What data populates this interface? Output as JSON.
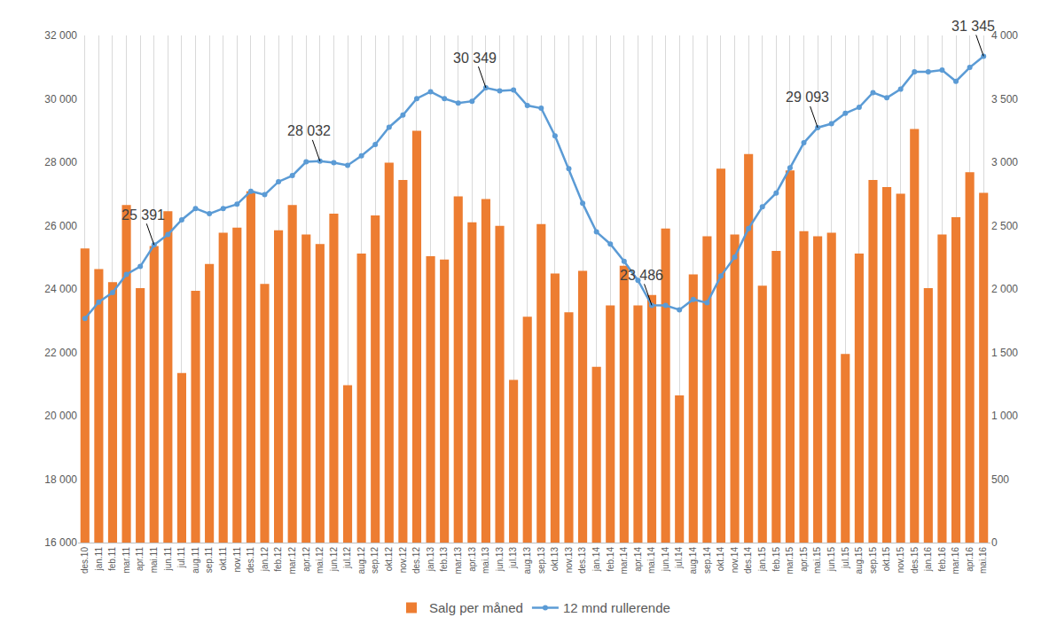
{
  "chart_data": {
    "type": "bar",
    "categories": [
      "des.10",
      "jan.11",
      "feb.11",
      "mar.11",
      "apr.11",
      "mai.11",
      "jun.11",
      "jul.11",
      "aug.11",
      "sep.11",
      "okt.11",
      "nov.11",
      "des.11",
      "jan.12",
      "feb.12",
      "mar.12",
      "apr.12",
      "mai.12",
      "jun.12",
      "jul.12",
      "aug.12",
      "sep.12",
      "okt.12",
      "nov.12",
      "des.12",
      "jan.13",
      "feb.13",
      "mar.13",
      "apr.13",
      "mai.13",
      "jun.13",
      "jul.13",
      "aug.13",
      "sep.13",
      "okt.13",
      "nov.13",
      "des.13",
      "jan.14",
      "feb.14",
      "mar.14",
      "apr.14",
      "mai.14",
      "jun.14",
      "jul.14",
      "aug.14",
      "sep.14",
      "okt.14",
      "nov.14",
      "des.14",
      "jan.15",
      "feb.15",
      "mar.15",
      "apr.15",
      "mai.15",
      "jun.15",
      "jul.15",
      "aug.15",
      "sep.15",
      "okt.15",
      "nov.15",
      "des.15",
      "jan.16",
      "feb.16",
      "mar.16",
      "apr.16",
      "mai.16"
    ],
    "series": [
      {
        "name": "Salg per måned",
        "type": "bar",
        "axis": "y2",
        "color": "#ED7D31",
        "values": [
          2320,
          2157,
          2055,
          2662,
          2007,
          2340,
          2614,
          1338,
          1986,
          2198,
          2444,
          2485,
          2771,
          2041,
          2464,
          2662,
          2430,
          2355,
          2594,
          1242,
          2280,
          2580,
          2997,
          2860,
          3249,
          2259,
          2232,
          2730,
          2526,
          2710,
          2498,
          1283,
          1782,
          2512,
          2123,
          1816,
          2143,
          1386,
          1870,
          2184,
          1870,
          1952,
          2478,
          1160,
          2116,
          2416,
          2949,
          2430,
          3065,
          2027,
          2300,
          2935,
          2457,
          2416,
          2444,
          1488,
          2280,
          2860,
          2805,
          2751,
          3263,
          2007,
          2430,
          2567,
          2922,
          2758
        ]
      },
      {
        "name": "12 mnd rullerende",
        "type": "line",
        "color": "#5B9BD5",
        "marker": "circle",
        "line_style": "solid",
        "values": [
          23072,
          23590,
          23890,
          24464,
          24710,
          25391,
          25720,
          26184,
          26540,
          26375,
          26540,
          26676,
          27085,
          26976,
          27386,
          27577,
          28014,
          28032,
          27986,
          27904,
          28205,
          28560,
          29106,
          29488,
          30007,
          30225,
          30007,
          29870,
          29925,
          30349,
          30252,
          30280,
          29788,
          29706,
          28833,
          27795,
          26703,
          25802,
          25420,
          24874,
          24273,
          23486,
          23480,
          23345,
          23672,
          23563,
          24410,
          25010,
          25911,
          26594,
          27031,
          27823,
          28614,
          29093,
          29215,
          29543,
          29733,
          30198,
          30034,
          30307,
          30853,
          30853,
          30908,
          30553,
          30990,
          31345
        ]
      }
    ],
    "ylim": [
      16000,
      32000
    ],
    "yticks": [
      {
        "value": 16000,
        "label": "16 000"
      },
      {
        "value": 18000,
        "label": "18 000"
      },
      {
        "value": 20000,
        "label": "20 000"
      },
      {
        "value": 22000,
        "label": "22 000"
      },
      {
        "value": 24000,
        "label": "24 000"
      },
      {
        "value": 26000,
        "label": "26 000"
      },
      {
        "value": 28000,
        "label": "28 000"
      },
      {
        "value": 30000,
        "label": "30 000"
      },
      {
        "value": 32000,
        "label": "32 000"
      }
    ],
    "y2lim": [
      0,
      4000
    ],
    "y2ticks": [
      0,
      500,
      {
        "value": 1000,
        "label": "1 000"
      },
      {
        "value": 1500,
        "label": "1 500"
      },
      {
        "value": 2000,
        "label": "2 000"
      },
      {
        "value": 2500,
        "label": "2 500"
      },
      {
        "value": 3000,
        "label": "3 000"
      },
      {
        "value": 3500,
        "label": "3 500"
      },
      {
        "value": 4000,
        "label": "4 000"
      }
    ],
    "annotations": [
      {
        "category": "mai.11",
        "text": "25 391"
      },
      {
        "category": "mai.12",
        "text": "28 032"
      },
      {
        "category": "mai.13",
        "text": "30 349"
      },
      {
        "category": "mai.14",
        "text": "23 486"
      },
      {
        "category": "mai.15",
        "text": "29 093"
      },
      {
        "category": "mai.16",
        "text": "31 345"
      }
    ],
    "grid": true,
    "legend": "bottom"
  }
}
